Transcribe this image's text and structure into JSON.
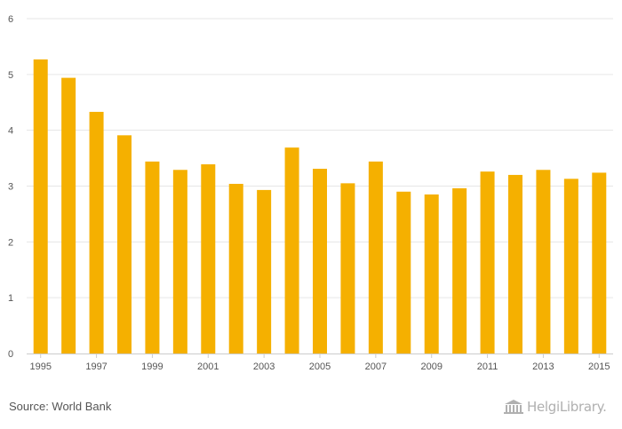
{
  "chart_data": {
    "type": "bar",
    "categories": [
      "1995",
      "1996",
      "1997",
      "1998",
      "1999",
      "2000",
      "2001",
      "2002",
      "2003",
      "2004",
      "2005",
      "2006",
      "2007",
      "2008",
      "2009",
      "2010",
      "2011",
      "2012",
      "2013",
      "2014",
      "2015"
    ],
    "x_tick_labels": [
      "1995",
      "1997",
      "1999",
      "2001",
      "2003",
      "2005",
      "2007",
      "2009",
      "2011",
      "2013",
      "2015"
    ],
    "values": [
      5.27,
      4.94,
      4.33,
      3.91,
      3.44,
      3.29,
      3.39,
      3.04,
      2.93,
      3.69,
      3.31,
      3.05,
      3.44,
      2.9,
      2.85,
      2.96,
      3.26,
      3.2,
      3.29,
      3.13,
      3.24
    ],
    "title": "",
    "xlabel": "",
    "ylabel": "",
    "ylim": [
      0,
      6
    ],
    "y_ticks": [
      "0",
      "1",
      "2",
      "3",
      "4",
      "5",
      "6"
    ],
    "grid": true,
    "bar_color": "#f5b000",
    "grid_color": "#e6e6e6"
  },
  "footer": {
    "source": "Source: World Bank",
    "logo_text": "HelgiLibrary.",
    "logo_icon": "library-building-icon"
  }
}
